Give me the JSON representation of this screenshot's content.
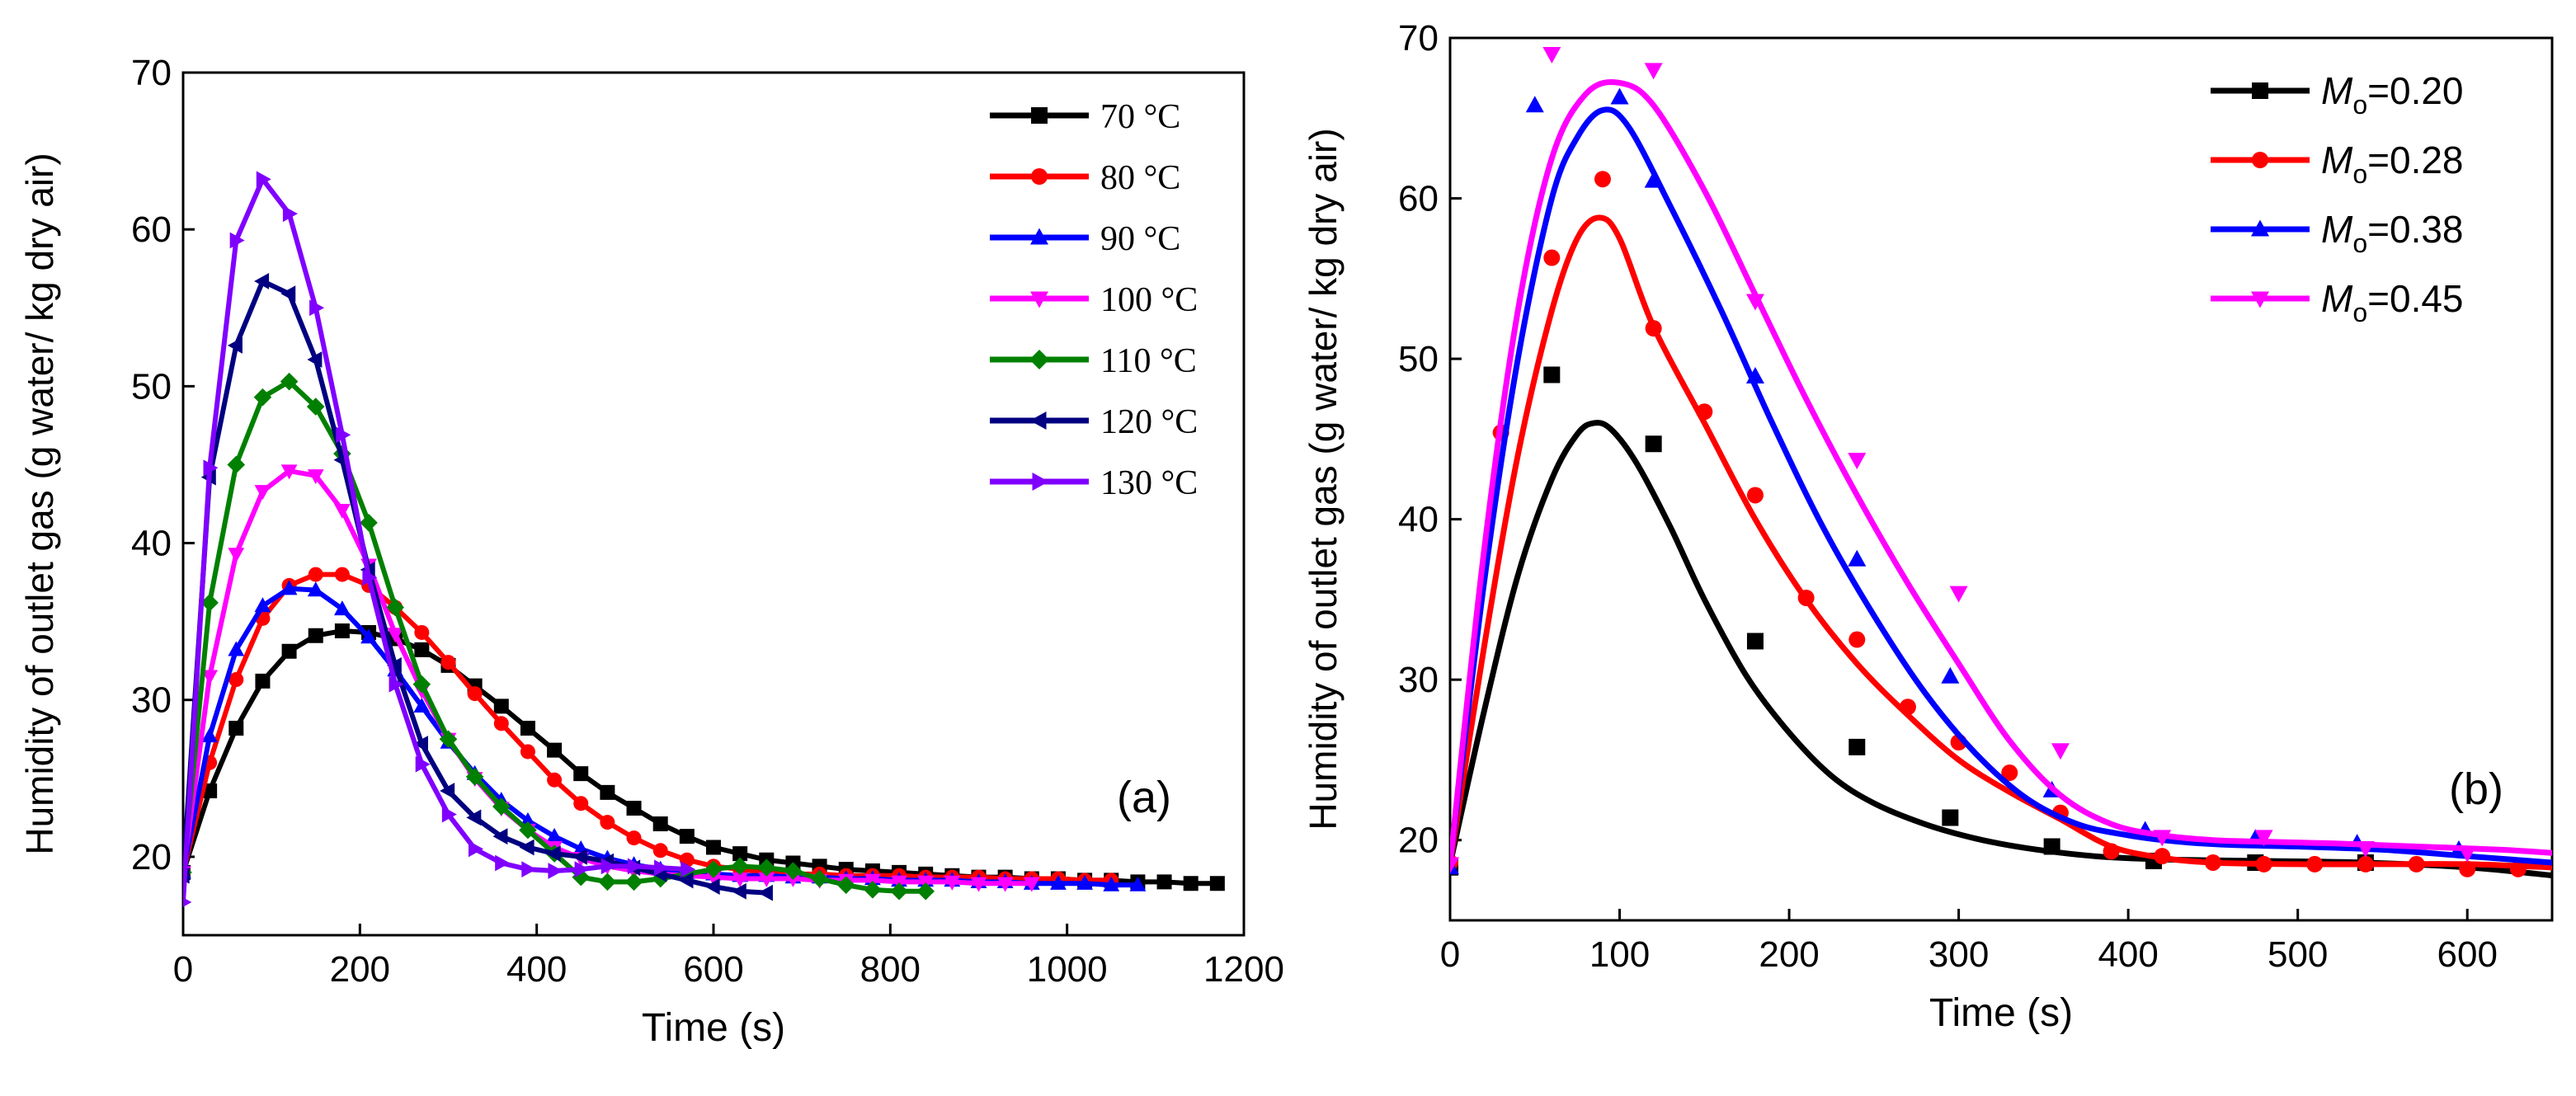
{
  "chart_data": [
    {
      "id": "a",
      "type": "line",
      "panel_label": "(a)",
      "xlabel": "Time (s)",
      "ylabel": "Humidity of outlet gas (g water/ kg dry air)",
      "xlim": [
        0,
        1200
      ],
      "ylim": [
        15,
        70
      ],
      "xticks": [
        0,
        200,
        400,
        600,
        800,
        1000,
        1200
      ],
      "yticks": [
        20,
        30,
        40,
        50,
        60,
        70
      ],
      "legend_position": "top-right",
      "series": [
        {
          "name": "70 °C",
          "color": "#000000",
          "marker": "square",
          "x": [
            0,
            30,
            60,
            90,
            120,
            150,
            180,
            210,
            240,
            270,
            300,
            330,
            360,
            390,
            420,
            450,
            480,
            510,
            540,
            570,
            600,
            630,
            660,
            690,
            720,
            750,
            780,
            810,
            840,
            870,
            900,
            930,
            960,
            990,
            1020,
            1050,
            1080,
            1110,
            1140,
            1170
          ],
          "y": [
            19,
            24.2,
            28.2,
            31.2,
            33.1,
            34.1,
            34.4,
            34.3,
            33.9,
            33.2,
            32.2,
            30.9,
            29.6,
            28.2,
            26.8,
            25.3,
            24.1,
            23.1,
            22.1,
            21.3,
            20.6,
            20.2,
            19.8,
            19.6,
            19.4,
            19.2,
            19.1,
            19,
            18.9,
            18.8,
            18.7,
            18.7,
            18.6,
            18.6,
            18.5,
            18.5,
            18.4,
            18.4,
            18.3,
            18.3
          ]
        },
        {
          "name": "80 °C",
          "color": "#ff0000",
          "marker": "circle",
          "x": [
            0,
            30,
            60,
            90,
            120,
            150,
            180,
            210,
            240,
            270,
            300,
            330,
            360,
            390,
            420,
            450,
            480,
            510,
            540,
            570,
            600,
            630,
            660,
            690,
            720,
            750,
            780,
            810,
            840,
            870,
            900,
            930,
            960,
            990,
            1020,
            1050
          ],
          "y": [
            19,
            26,
            31.3,
            35.2,
            37.3,
            38,
            38,
            37.3,
            35.9,
            34.3,
            32.4,
            30.4,
            28.5,
            26.7,
            24.9,
            23.4,
            22.2,
            21.2,
            20.4,
            19.8,
            19.4,
            19.2,
            19,
            18.9,
            18.9,
            18.8,
            18.8,
            18.8,
            18.7,
            18.7,
            18.7,
            18.6,
            18.6,
            18.6,
            18.5,
            18.5
          ]
        },
        {
          "name": "90 °C",
          "color": "#0000ff",
          "marker": "triangle-up",
          "x": [
            0,
            30,
            60,
            90,
            120,
            150,
            180,
            210,
            240,
            270,
            300,
            330,
            360,
            390,
            420,
            450,
            480,
            510,
            540,
            570,
            600,
            630,
            660,
            690,
            720,
            750,
            780,
            810,
            840,
            870,
            900,
            930,
            960,
            990,
            1020,
            1050,
            1080
          ],
          "y": [
            19,
            27.7,
            33.2,
            36,
            37.1,
            37,
            35.8,
            34,
            31.9,
            29.6,
            27.3,
            25.3,
            23.6,
            22.3,
            21.3,
            20.5,
            19.9,
            19.5,
            19.2,
            19,
            18.9,
            18.8,
            18.8,
            18.7,
            18.7,
            18.6,
            18.6,
            18.5,
            18.5,
            18.5,
            18.4,
            18.4,
            18.3,
            18.3,
            18.3,
            18.2,
            18.2
          ]
        },
        {
          "name": "100 °C",
          "color": "#ff00ff",
          "marker": "triangle-down",
          "x": [
            0,
            30,
            60,
            90,
            120,
            150,
            180,
            210,
            240,
            270,
            300,
            330,
            360,
            390,
            420,
            450,
            480,
            510,
            540,
            570,
            600,
            630,
            660,
            690,
            720,
            750,
            780,
            810,
            840,
            870,
            900,
            930,
            960
          ],
          "y": [
            19,
            31.5,
            39.3,
            43.3,
            44.6,
            44.3,
            42.1,
            38.6,
            34.2,
            30.6,
            27.5,
            25,
            23.1,
            21.7,
            20.6,
            19.9,
            19.4,
            19.1,
            18.9,
            18.8,
            18.7,
            18.6,
            18.6,
            18.6,
            18.5,
            18.5,
            18.5,
            18.4,
            18.4,
            18.4,
            18.3,
            18.3,
            18.3
          ]
        },
        {
          "name": "110 °C",
          "color": "#008000",
          "marker": "diamond",
          "x": [
            0,
            30,
            60,
            90,
            120,
            150,
            180,
            210,
            240,
            270,
            300,
            330,
            360,
            390,
            420,
            450,
            480,
            510,
            540,
            570,
            600,
            630,
            660,
            690,
            720,
            750,
            780,
            810,
            840
          ],
          "y": [
            19,
            36.2,
            45,
            49.3,
            50.3,
            48.7,
            45.7,
            41.3,
            35.9,
            31,
            27.5,
            25.1,
            23.2,
            21.7,
            20.2,
            18.7,
            18.4,
            18.4,
            18.6,
            18.9,
            19.2,
            19.4,
            19.3,
            19.1,
            18.6,
            18.2,
            17.9,
            17.8,
            17.8
          ]
        },
        {
          "name": "120 °C",
          "color": "#000080",
          "marker": "triangle-left",
          "x": [
            0,
            30,
            60,
            90,
            120,
            150,
            180,
            210,
            240,
            270,
            300,
            330,
            360,
            390,
            420,
            450,
            480,
            510,
            540,
            570,
            600,
            630,
            660
          ],
          "y": [
            18.8,
            44.2,
            52.6,
            56.7,
            55.9,
            51.7,
            45.3,
            38.3,
            32.2,
            27.2,
            24.2,
            22.5,
            21.3,
            20.6,
            20.2,
            20,
            19.7,
            19.3,
            18.9,
            18.5,
            18.1,
            17.8,
            17.7
          ]
        },
        {
          "name": "130 °C",
          "color": "#8000ff",
          "marker": "triangle-right",
          "x": [
            0,
            30,
            60,
            90,
            120,
            150,
            180,
            210,
            240,
            270,
            300,
            330,
            360,
            390,
            420,
            450,
            480,
            510,
            540,
            570
          ],
          "y": [
            17.1,
            44.8,
            59.3,
            63.2,
            61,
            55,
            46.9,
            37.8,
            31,
            25.9,
            22.7,
            20.5,
            19.6,
            19.2,
            19.1,
            19.2,
            19.4,
            19.4,
            19.3,
            19.2
          ]
        }
      ]
    },
    {
      "id": "b",
      "type": "line",
      "panel_label": "(b)",
      "xlabel": "Time (s)",
      "ylabel": "Humidity of outlet gas (g water/ kg dry air)",
      "xlim": [
        0,
        650
      ],
      "ylim": [
        15,
        70
      ],
      "xticks": [
        0,
        100,
        200,
        300,
        400,
        500,
        600
      ],
      "yticks": [
        20,
        30,
        40,
        50,
        60,
        70
      ],
      "legend_position": "top-right",
      "series": [
        {
          "name": "Mo=0.20",
          "legend_prefix": "M",
          "legend_sub": "o",
          "legend_value": "=0.20",
          "color": "#000000",
          "marker": "square",
          "curve_x": [
            0,
            20,
            40,
            60,
            75,
            85,
            95,
            110,
            130,
            150,
            175,
            200,
            225,
            250,
            280,
            310,
            340,
            380,
            420,
            480,
            540,
            600,
            650
          ],
          "curve_y": [
            18.5,
            28,
            36.5,
            42.5,
            45.3,
            46,
            45.6,
            43.5,
            39.5,
            35,
            30.2,
            26.7,
            24,
            22.3,
            21,
            20.1,
            19.5,
            19,
            18.8,
            18.7,
            18.6,
            18.3,
            17.8
          ],
          "points_x": [
            0,
            60,
            120,
            180,
            240,
            295,
            355,
            415,
            475,
            540
          ],
          "points_y": [
            18.3,
            49,
            44.7,
            32.4,
            25.8,
            21.4,
            19.6,
            18.7,
            18.6,
            18.6
          ]
        },
        {
          "name": "Mo=0.28",
          "legend_prefix": "M",
          "legend_sub": "o",
          "legend_value": "=0.28",
          "color": "#ff0000",
          "marker": "circle",
          "curve_x": [
            0,
            20,
            40,
            60,
            75,
            88,
            100,
            120,
            150,
            180,
            210,
            240,
            270,
            300,
            330,
            360,
            390,
            420,
            450,
            500,
            550,
            600,
            650
          ],
          "curve_y": [
            18.5,
            32,
            44,
            53,
            57.5,
            58.8,
            57.5,
            52,
            46,
            40,
            35,
            31,
            27.8,
            25,
            23,
            21.3,
            19.6,
            18.9,
            18.6,
            18.5,
            18.5,
            18.5,
            18.3
          ],
          "points_x": [
            0,
            30,
            60,
            90,
            120,
            150,
            180,
            210,
            240,
            270,
            300,
            330,
            360,
            390,
            420,
            450,
            480,
            510,
            540,
            570,
            600,
            630
          ],
          "points_y": [
            18.6,
            45.4,
            56.3,
            61.2,
            51.9,
            46.7,
            41.5,
            35.1,
            32.5,
            28.3,
            26.1,
            24.2,
            21.7,
            19.3,
            19,
            18.6,
            18.5,
            18.5,
            18.5,
            18.5,
            18.2,
            18.2
          ]
        },
        {
          "name": "Mo=0.38",
          "legend_prefix": "M",
          "legend_sub": "o",
          "legend_value": "=0.38",
          "color": "#0000ff",
          "marker": "triangle-up",
          "curve_x": [
            0,
            20,
            40,
            60,
            75,
            90,
            105,
            130,
            160,
            190,
            220,
            250,
            280,
            310,
            340,
            370,
            400,
            430,
            460,
            500,
            550,
            600,
            650
          ],
          "curve_y": [
            18.5,
            36,
            50,
            60,
            63.8,
            65.5,
            64.5,
            59.5,
            53,
            46,
            39.5,
            34,
            29.2,
            25.4,
            22.6,
            21,
            20.3,
            19.9,
            19.7,
            19.6,
            19.4,
            19,
            18.6
          ],
          "points_x": [
            0,
            50,
            100,
            120,
            180,
            240,
            295,
            355,
            410,
            475,
            535,
            595
          ],
          "points_y": [
            18.3,
            65.8,
            66.3,
            61.1,
            48.9,
            37.5,
            30.2,
            23.1,
            20.6,
            20.1,
            19.8,
            19.4
          ]
        },
        {
          "name": "Mo=0.45",
          "legend_prefix": "M",
          "legend_sub": "o",
          "legend_value": "=0.45",
          "color": "#ff00ff",
          "marker": "triangle-down",
          "curve_x": [
            0,
            20,
            40,
            60,
            80,
            100,
            120,
            150,
            180,
            210,
            240,
            270,
            300,
            330,
            360,
            390,
            420,
            450,
            480,
            520,
            570,
            620,
            650
          ],
          "curve_y": [
            18.5,
            38,
            53,
            62.5,
            66.5,
            67.2,
            65.8,
            60.5,
            54,
            47.5,
            41.5,
            36,
            31,
            26.2,
            22.8,
            21,
            20.3,
            20,
            19.9,
            19.8,
            19.6,
            19.4,
            19.2
          ],
          "points_x": [
            0,
            60,
            120,
            180,
            240,
            300,
            360,
            420,
            480,
            540,
            600
          ],
          "points_y": [
            18.5,
            69,
            68,
            53.6,
            43.7,
            35.4,
            25.6,
            20.2,
            20.2,
            19.5,
            19.2
          ]
        }
      ]
    }
  ]
}
